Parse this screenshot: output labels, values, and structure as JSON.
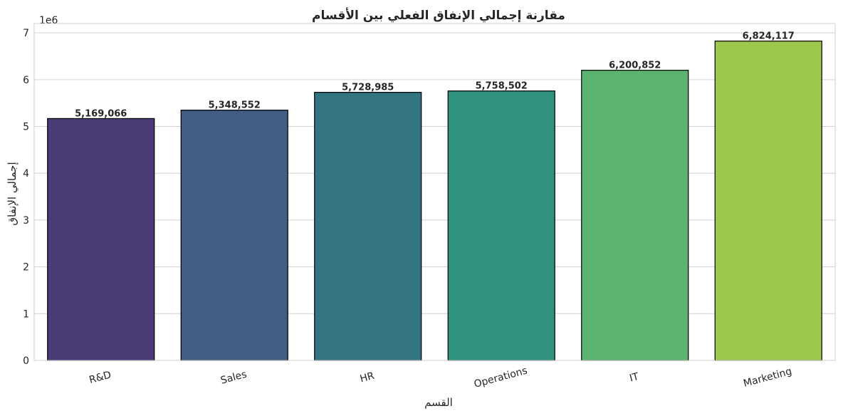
{
  "chart_data": {
    "type": "bar",
    "title": "مقارنة إجمالي الإنفاق الفعلي بين الأقسام",
    "xlabel": "القسم",
    "ylabel": "إجمالي الإنفاق",
    "scale_label": "1e6",
    "categories": [
      "R&D",
      "Sales",
      "HR",
      "Operations",
      "IT",
      "Marketing"
    ],
    "values": [
      5169066,
      5348552,
      5728985,
      5758502,
      6200852,
      6824117
    ],
    "value_labels": [
      "5,169,066",
      "5,348,552",
      "5,728,985",
      "5,758,502",
      "6,200,852",
      "6,824,117"
    ],
    "colors": [
      "#4a3a75",
      "#415d82",
      "#347582",
      "#2f927e",
      "#5bb271",
      "#9cc74c"
    ],
    "ylim": [
      0,
      7.2
    ],
    "yticks": [
      0,
      1,
      2,
      3,
      4,
      5,
      6,
      7
    ],
    "ytick_labels": [
      "0",
      "1",
      "2",
      "3",
      "4",
      "5",
      "6",
      "7"
    ],
    "grid": "y",
    "grid_color": "#d0d0d0"
  }
}
